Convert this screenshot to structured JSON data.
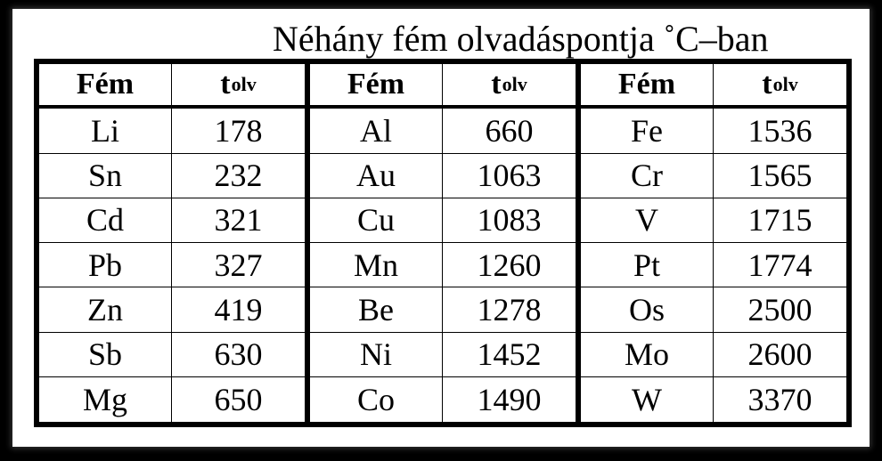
{
  "title": "Néhány fém olvadáspontja ˚C–ban",
  "header": {
    "metal": "Fém",
    "temp_main": "t",
    "temp_sub": "olv"
  },
  "groups": [
    {
      "rows": [
        {
          "metal": "Li",
          "temp": "178"
        },
        {
          "metal": "Sn",
          "temp": "232"
        },
        {
          "metal": "Cd",
          "temp": "321"
        },
        {
          "metal": "Pb",
          "temp": "327"
        },
        {
          "metal": "Zn",
          "temp": "419"
        },
        {
          "metal": "Sb",
          "temp": "630"
        },
        {
          "metal": "Mg",
          "temp": "650"
        }
      ]
    },
    {
      "rows": [
        {
          "metal": "Al",
          "temp": "660"
        },
        {
          "metal": "Au",
          "temp": "1063"
        },
        {
          "metal": "Cu",
          "temp": "1083"
        },
        {
          "metal": "Mn",
          "temp": "1260"
        },
        {
          "metal": "Be",
          "temp": "1278"
        },
        {
          "metal": "Ni",
          "temp": "1452"
        },
        {
          "metal": "Co",
          "temp": "1490"
        }
      ]
    },
    {
      "rows": [
        {
          "metal": "Fe",
          "temp": "1536"
        },
        {
          "metal": "Cr",
          "temp": "1565"
        },
        {
          "metal": "V",
          "temp": "1715"
        },
        {
          "metal": "Pt",
          "temp": "1774"
        },
        {
          "metal": "Os",
          "temp": "2500"
        },
        {
          "metal": "Mo",
          "temp": "2600"
        },
        {
          "metal": "W",
          "temp": "3370"
        }
      ]
    }
  ]
}
